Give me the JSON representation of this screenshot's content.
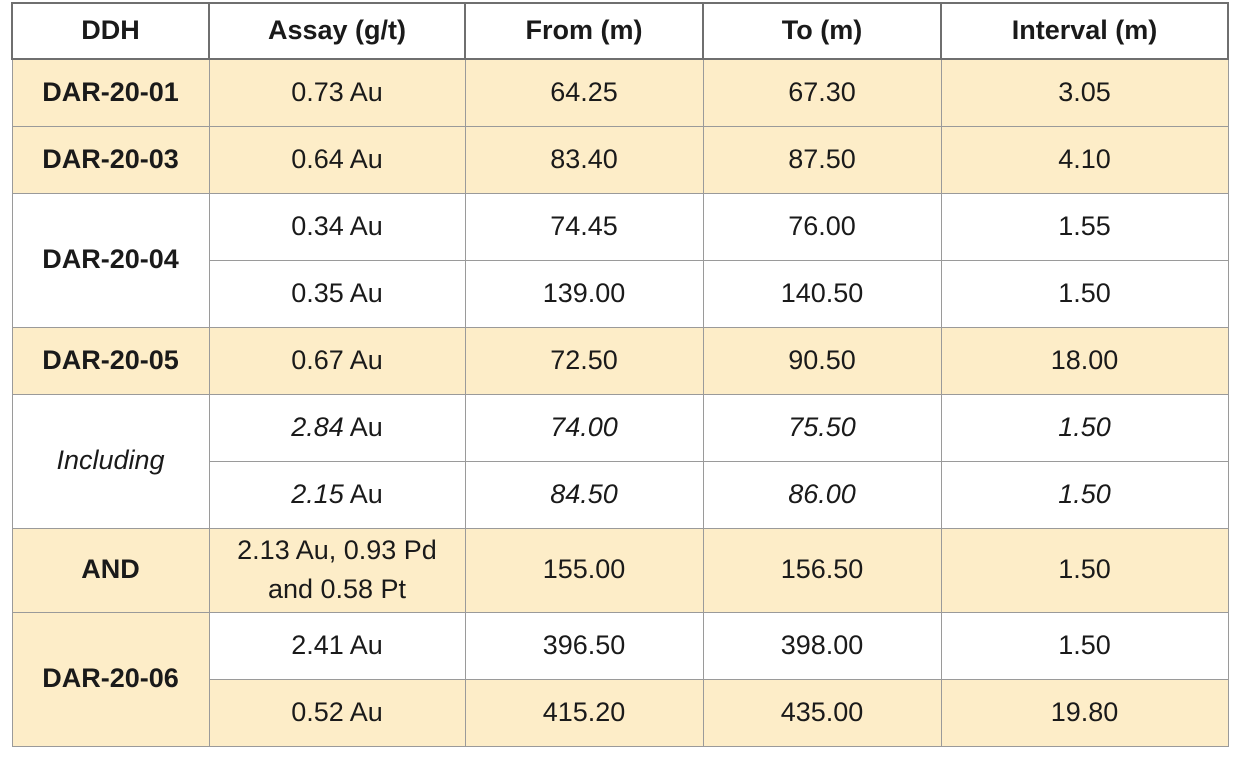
{
  "table": {
    "headers": [
      "DDH",
      "Assay (g/t)",
      "From (m)",
      "To (m)",
      "Interval (m)"
    ],
    "ddh_groups": [
      "DAR-20-01",
      "DAR-20-03",
      "DAR-20-04",
      "DAR-20-05",
      "Including",
      "AND",
      "DAR-20-06"
    ],
    "rows": [
      {
        "assay": "0.73 Au",
        "from": "64.25",
        "to": "67.30",
        "interval": "3.05"
      },
      {
        "assay": "0.64 Au",
        "from": "83.40",
        "to": "87.50",
        "interval": "4.10"
      },
      {
        "assay": "0.34 Au",
        "from": "74.45",
        "to": "76.00",
        "interval": "1.55"
      },
      {
        "assay": "0.35 Au",
        "from": "139.00",
        "to": "140.50",
        "interval": "1.50"
      },
      {
        "assay": "0.67 Au",
        "from": "72.50",
        "to": "90.50",
        "interval": "18.00"
      },
      {
        "assay_value": "2.84",
        "assay_unit": "Au",
        "from": "74.00",
        "to": "75.50",
        "interval": "1.50"
      },
      {
        "assay_value": "2.15",
        "assay_unit": "Au",
        "from": "84.50",
        "to": "86.00",
        "interval": "1.50"
      },
      {
        "assay": "2.13 Au, 0.93 Pd and 0.58 Pt",
        "from": "155.00",
        "to": "156.50",
        "interval": "1.50"
      },
      {
        "assay": "2.41 Au",
        "from": "396.50",
        "to": "398.00",
        "interval": "1.50"
      },
      {
        "assay": "0.52 Au",
        "from": "415.20",
        "to": "435.00",
        "interval": "19.80"
      }
    ]
  },
  "colors": {
    "highlight_fill": "#fdedc8",
    "plain_fill": "#ffffff",
    "grid_line": "#9a9a9a"
  }
}
